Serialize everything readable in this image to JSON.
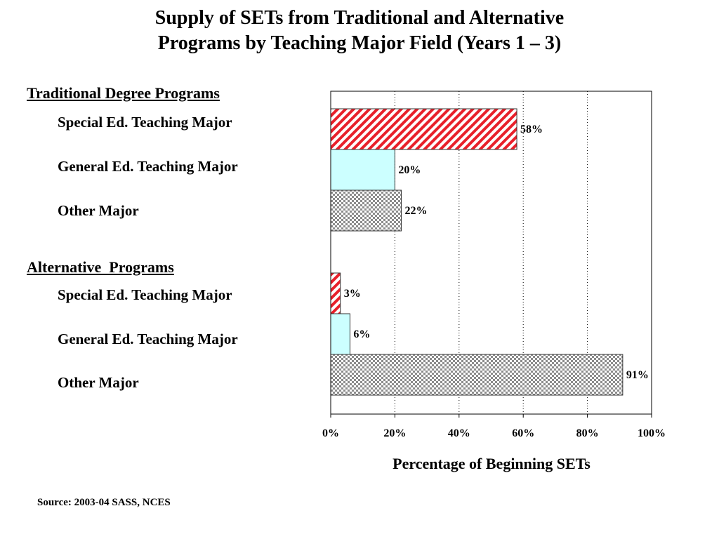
{
  "page": {
    "title_line1": "Supply of SETs from Traditional and Alternative",
    "title_line2": "Programs by Teaching Major Field (Years 1 – 3)",
    "source": "Source: 2003-04 SASS, NCES"
  },
  "chart_data": {
    "type": "bar",
    "orientation": "horizontal",
    "groups": [
      {
        "name": "Traditional Degree Programs",
        "categories": [
          "Special Ed. Teaching Major",
          "General Ed. Teaching Major",
          "Other Major"
        ],
        "values": [
          58,
          20,
          22
        ],
        "labels": [
          "58%",
          "20%",
          "22%"
        ]
      },
      {
        "name": "Alternative  Programs",
        "categories": [
          "Special Ed. Teaching Major",
          "General Ed. Teaching Major",
          "Other Major"
        ],
        "values": [
          3,
          6,
          91
        ],
        "labels": [
          "3%",
          "6%",
          "91%"
        ]
      }
    ],
    "bar_styles": [
      "red-diagonal-hatch",
      "light-cyan-solid",
      "gray-checkerboard"
    ],
    "colors": {
      "special_ed": "#e8202a",
      "general_ed": "#ccffff",
      "other": "#9a9a9a"
    },
    "xlabel": "Percentage of Beginning SETs",
    "xlim": [
      0,
      100
    ],
    "x_ticks": [
      "0%",
      "20%",
      "40%",
      "60%",
      "80%",
      "100%"
    ],
    "grid": "vertical dotted"
  }
}
